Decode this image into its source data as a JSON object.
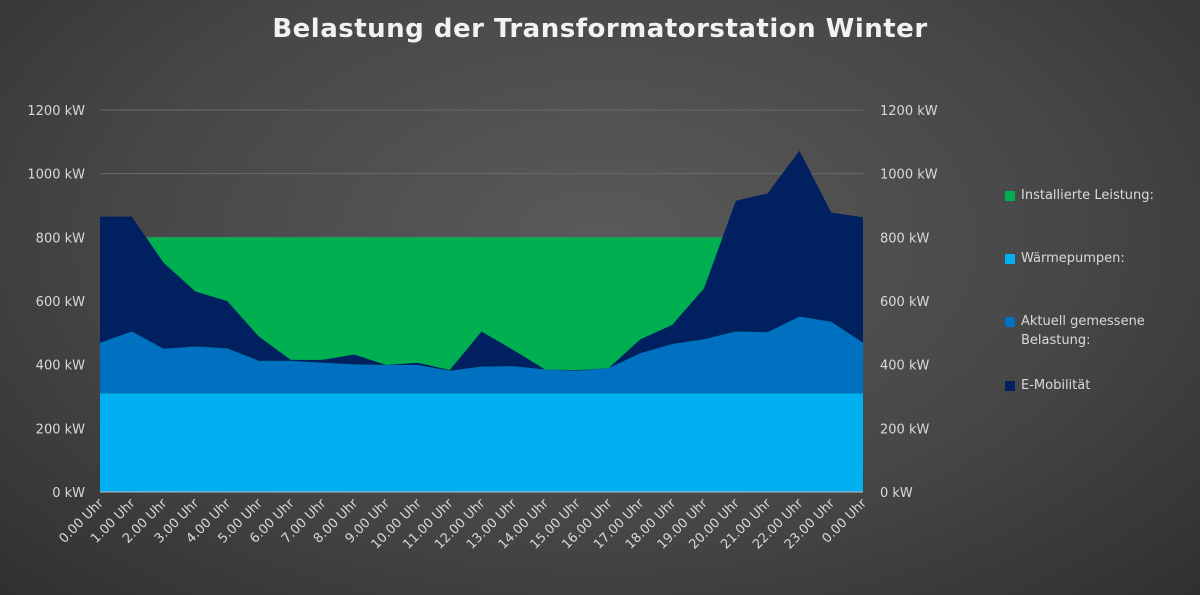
{
  "chart_data": {
    "type": "area",
    "title": "Belastung der Transformatorstation Winter",
    "xlabel": "",
    "ylabel": "",
    "ylim": [
      0,
      1200
    ],
    "yticks": [
      "0 kW",
      "200 kW",
      "400 kW",
      "600 kW",
      "800 kW",
      "1000 kW",
      "1200 kW"
    ],
    "ytick_values": [
      0,
      200,
      400,
      600,
      800,
      1000,
      1200
    ],
    "grid": true,
    "legend_position": "right",
    "categories": [
      "0.00 Uhr",
      "1.00 Uhr",
      "2.00 Uhr",
      "3.00 Uhr",
      "4.00 Uhr",
      "5.00 Uhr",
      "6.00 Uhr",
      "7.00 Uhr",
      "8.00 Uhr",
      "9.00 Uhr",
      "10.00 Uhr",
      "11.00 Uhr",
      "12.00 Uhr",
      "13.00 Uhr",
      "14.00 Uhr",
      "15.00 Uhr",
      "16.00 Uhr",
      "17.00 Uhr",
      "18.00 Uhr",
      "19.00 Uhr",
      "20.00 Uhr",
      "21.00 Uhr",
      "22.00 Uhr",
      "23.00 Uhr",
      "0.00 Uhr"
    ],
    "background_series": {
      "name": "Installierte Leistung:",
      "color": "#00B050",
      "values": [
        800,
        800,
        800,
        800,
        800,
        800,
        800,
        800,
        800,
        800,
        800,
        800,
        800,
        800,
        800,
        800,
        800,
        800,
        800,
        800,
        800,
        800,
        800,
        800,
        800
      ]
    },
    "stacked_series": [
      {
        "name": "Wärmepumpen:",
        "color": "#00B0F0",
        "values": [
          310,
          310,
          310,
          310,
          310,
          310,
          310,
          310,
          310,
          310,
          310,
          310,
          310,
          310,
          310,
          310,
          310,
          310,
          310,
          310,
          310,
          310,
          310,
          310,
          310
        ]
      },
      {
        "name": "Aktuell gemessene Belastung:",
        "color": "#0070C0",
        "values": [
          159,
          194,
          140,
          147,
          141,
          102,
          102,
          96,
          91,
          89,
          89,
          71,
          84,
          85,
          75,
          71,
          79,
          126,
          155,
          170,
          194,
          192,
          241,
          225,
          159
        ]
      },
      {
        "name": "E-Mobilität",
        "color": "#002060",
        "values": [
          396,
          361,
          270,
          173,
          149,
          76,
          3,
          9,
          31,
          0,
          7,
          2,
          110,
          51,
          0,
          2,
          0,
          44,
          60,
          160,
          411,
          436,
          521,
          343,
          394
        ]
      }
    ],
    "legend_order": [
      "Installierte Leistung:",
      "Wärmepumpen:",
      "Aktuell gemessene Belastung:",
      "E-Mobilität"
    ]
  }
}
